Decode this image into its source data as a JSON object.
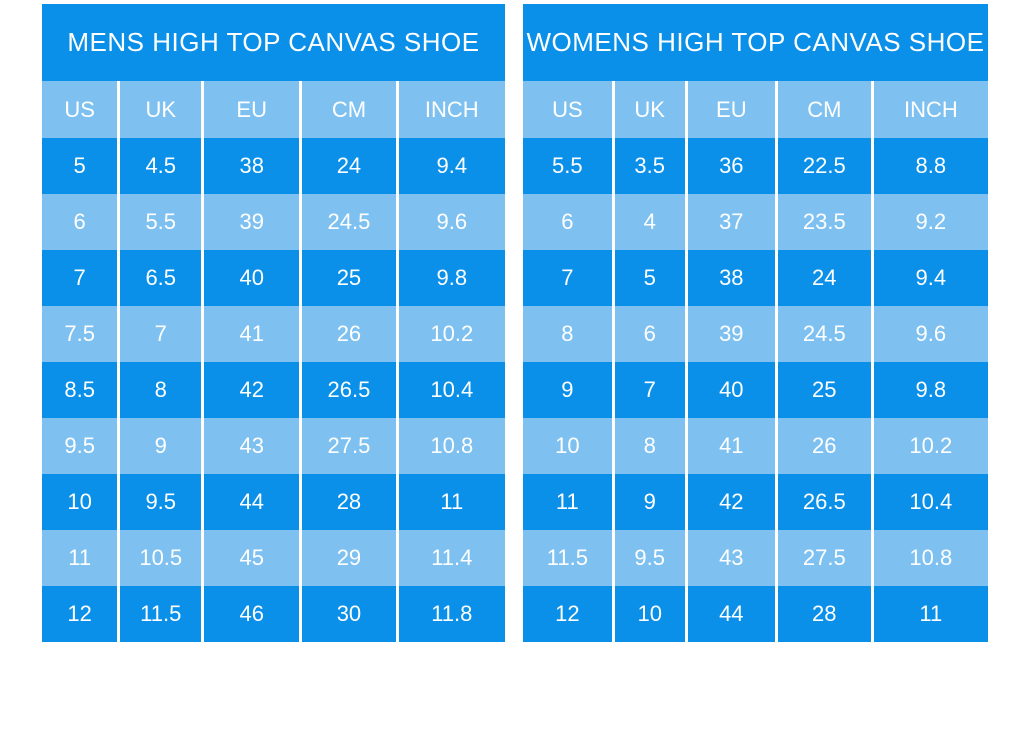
{
  "colors": {
    "dark_blue": "#0a90e9",
    "light_blue": "#7ec1f1",
    "text": "#ffffff"
  },
  "chart_data": [
    {
      "type": "table",
      "title": "MENS HIGH TOP CANVAS SHOE",
      "columns": [
        "US",
        "UK",
        "EU",
        "CM",
        "INCH"
      ],
      "rows": [
        [
          "5",
          "4.5",
          "38",
          "24",
          "9.4"
        ],
        [
          "6",
          "5.5",
          "39",
          "24.5",
          "9.6"
        ],
        [
          "7",
          "6.5",
          "40",
          "25",
          "9.8"
        ],
        [
          "7.5",
          "7",
          "41",
          "26",
          "10.2"
        ],
        [
          "8.5",
          "8",
          "42",
          "26.5",
          "10.4"
        ],
        [
          "9.5",
          "9",
          "43",
          "27.5",
          "10.8"
        ],
        [
          "10",
          "9.5",
          "44",
          "28",
          "11"
        ],
        [
          "11",
          "10.5",
          "45",
          "29",
          "11.4"
        ],
        [
          "12",
          "11.5",
          "46",
          "30",
          "11.8"
        ]
      ]
    },
    {
      "type": "table",
      "title": "WOMENS HIGH TOP CANVAS SHOE",
      "columns": [
        "US",
        "UK",
        "EU",
        "CM",
        "INCH"
      ],
      "rows": [
        [
          "5.5",
          "3.5",
          "36",
          "22.5",
          "8.8"
        ],
        [
          "6",
          "4",
          "37",
          "23.5",
          "9.2"
        ],
        [
          "7",
          "5",
          "38",
          "24",
          "9.4"
        ],
        [
          "8",
          "6",
          "39",
          "24.5",
          "9.6"
        ],
        [
          "9",
          "7",
          "40",
          "25",
          "9.8"
        ],
        [
          "10",
          "8",
          "41",
          "26",
          "10.2"
        ],
        [
          "11",
          "9",
          "42",
          "26.5",
          "10.4"
        ],
        [
          "11.5",
          "9.5",
          "43",
          "27.5",
          "10.8"
        ],
        [
          "12",
          "10",
          "44",
          "28",
          "11"
        ]
      ]
    }
  ]
}
